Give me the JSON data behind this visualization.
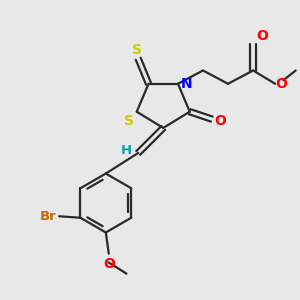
{
  "bg_color": "#e8e8e8",
  "line_color": "#2a2a2a",
  "line_width": 1.6,
  "S_color": "#cccc00",
  "N_color": "#0000ff",
  "O_color": "#ff0000",
  "Br_color": "#cc6600",
  "H_color": "#00aaaa",
  "C_color": "#2a2a2a",
  "xlim": [
    0,
    10
  ],
  "ylim": [
    0,
    10
  ]
}
